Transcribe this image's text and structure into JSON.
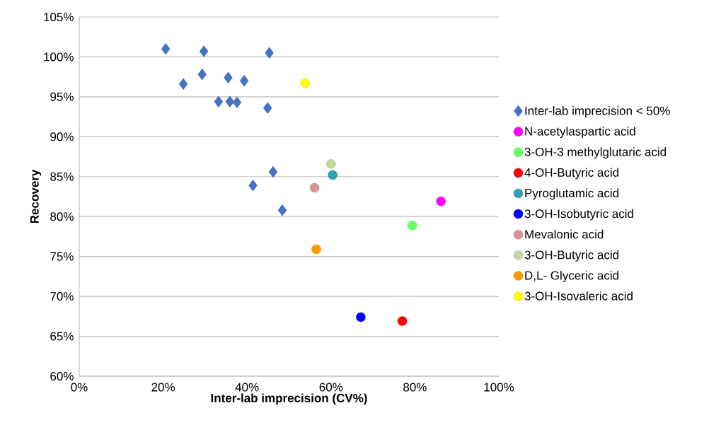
{
  "chart_data": {
    "type": "scatter",
    "xlabel": "Inter-lab imprecision (CV%)",
    "ylabel": "Recovery",
    "xlim": [
      0,
      100
    ],
    "ylim": [
      60,
      105
    ],
    "xticks": [
      {
        "value": 0,
        "label": "0%"
      },
      {
        "value": 20,
        "label": "20%"
      },
      {
        "value": 40,
        "label": "40%"
      },
      {
        "value": 60,
        "label": "60%"
      },
      {
        "value": 80,
        "label": "80%"
      },
      {
        "value": 100,
        "label": "100%"
      }
    ],
    "yticks": [
      {
        "value": 60,
        "label": "60%"
      },
      {
        "value": 65,
        "label": "65%"
      },
      {
        "value": 70,
        "label": "70%"
      },
      {
        "value": 75,
        "label": "75%"
      },
      {
        "value": 80,
        "label": "80%"
      },
      {
        "value": 85,
        "label": "85%"
      },
      {
        "value": 90,
        "label": "90%"
      },
      {
        "value": 95,
        "label": "95%"
      },
      {
        "value": 100,
        "label": "100%"
      },
      {
        "value": 105,
        "label": "105%"
      }
    ],
    "grid": "y",
    "legend": "right",
    "series": [
      {
        "name": "Inter-lab imprecision < 50%",
        "color": "#4472c4",
        "marker": "diamond",
        "x": [
          20.6,
          29.7,
          45.3,
          29.3,
          35.5,
          39.3,
          24.8,
          33.2,
          35.9,
          37.6,
          44.9,
          46.2,
          41.4,
          48.4
        ],
        "values": [
          101.0,
          100.7,
          100.5,
          97.8,
          97.4,
          97.0,
          96.6,
          94.4,
          94.4,
          94.3,
          93.6,
          85.6,
          83.9,
          80.8
        ]
      },
      {
        "name": "N-acetylaspartic acid",
        "color": "#ff00ff",
        "marker": "circle",
        "x": [
          86.2
        ],
        "values": [
          81.9
        ]
      },
      {
        "name": "3-OH-3 methylglutaric acid",
        "color": "#66ff66",
        "marker": "circle",
        "x": [
          79.4
        ],
        "values": [
          78.9
        ]
      },
      {
        "name": "4-OH-Butyric acid",
        "color": "#ff0000",
        "marker": "circle",
        "x": [
          77.0
        ],
        "values": [
          66.9
        ]
      },
      {
        "name": "Pyroglutamic acid",
        "color": "#31a0b4",
        "marker": "circle",
        "x": [
          60.4
        ],
        "values": [
          85.2
        ]
      },
      {
        "name": "3-OH-Isobutyric acid",
        "color": "#0000ff",
        "marker": "circle",
        "x": [
          67.1
        ],
        "values": [
          67.4
        ]
      },
      {
        "name": "Mevalonic acid",
        "color": "#d99594",
        "marker": "circle",
        "x": [
          56.1
        ],
        "values": [
          83.6
        ]
      },
      {
        "name": "3-OH-Butyric acid",
        "color": "#c3d69b",
        "marker": "circle",
        "x": [
          60.0
        ],
        "values": [
          86.6
        ]
      },
      {
        "name": "D,L- Glyceric acid",
        "color": "#ff9900",
        "marker": "circle",
        "x": [
          56.5
        ],
        "values": [
          75.9
        ]
      },
      {
        "name": "3-OH-Isovaleric acid",
        "color": "#ffff00",
        "marker": "circle",
        "x": [
          53.8
        ],
        "values": [
          96.7
        ]
      }
    ]
  }
}
